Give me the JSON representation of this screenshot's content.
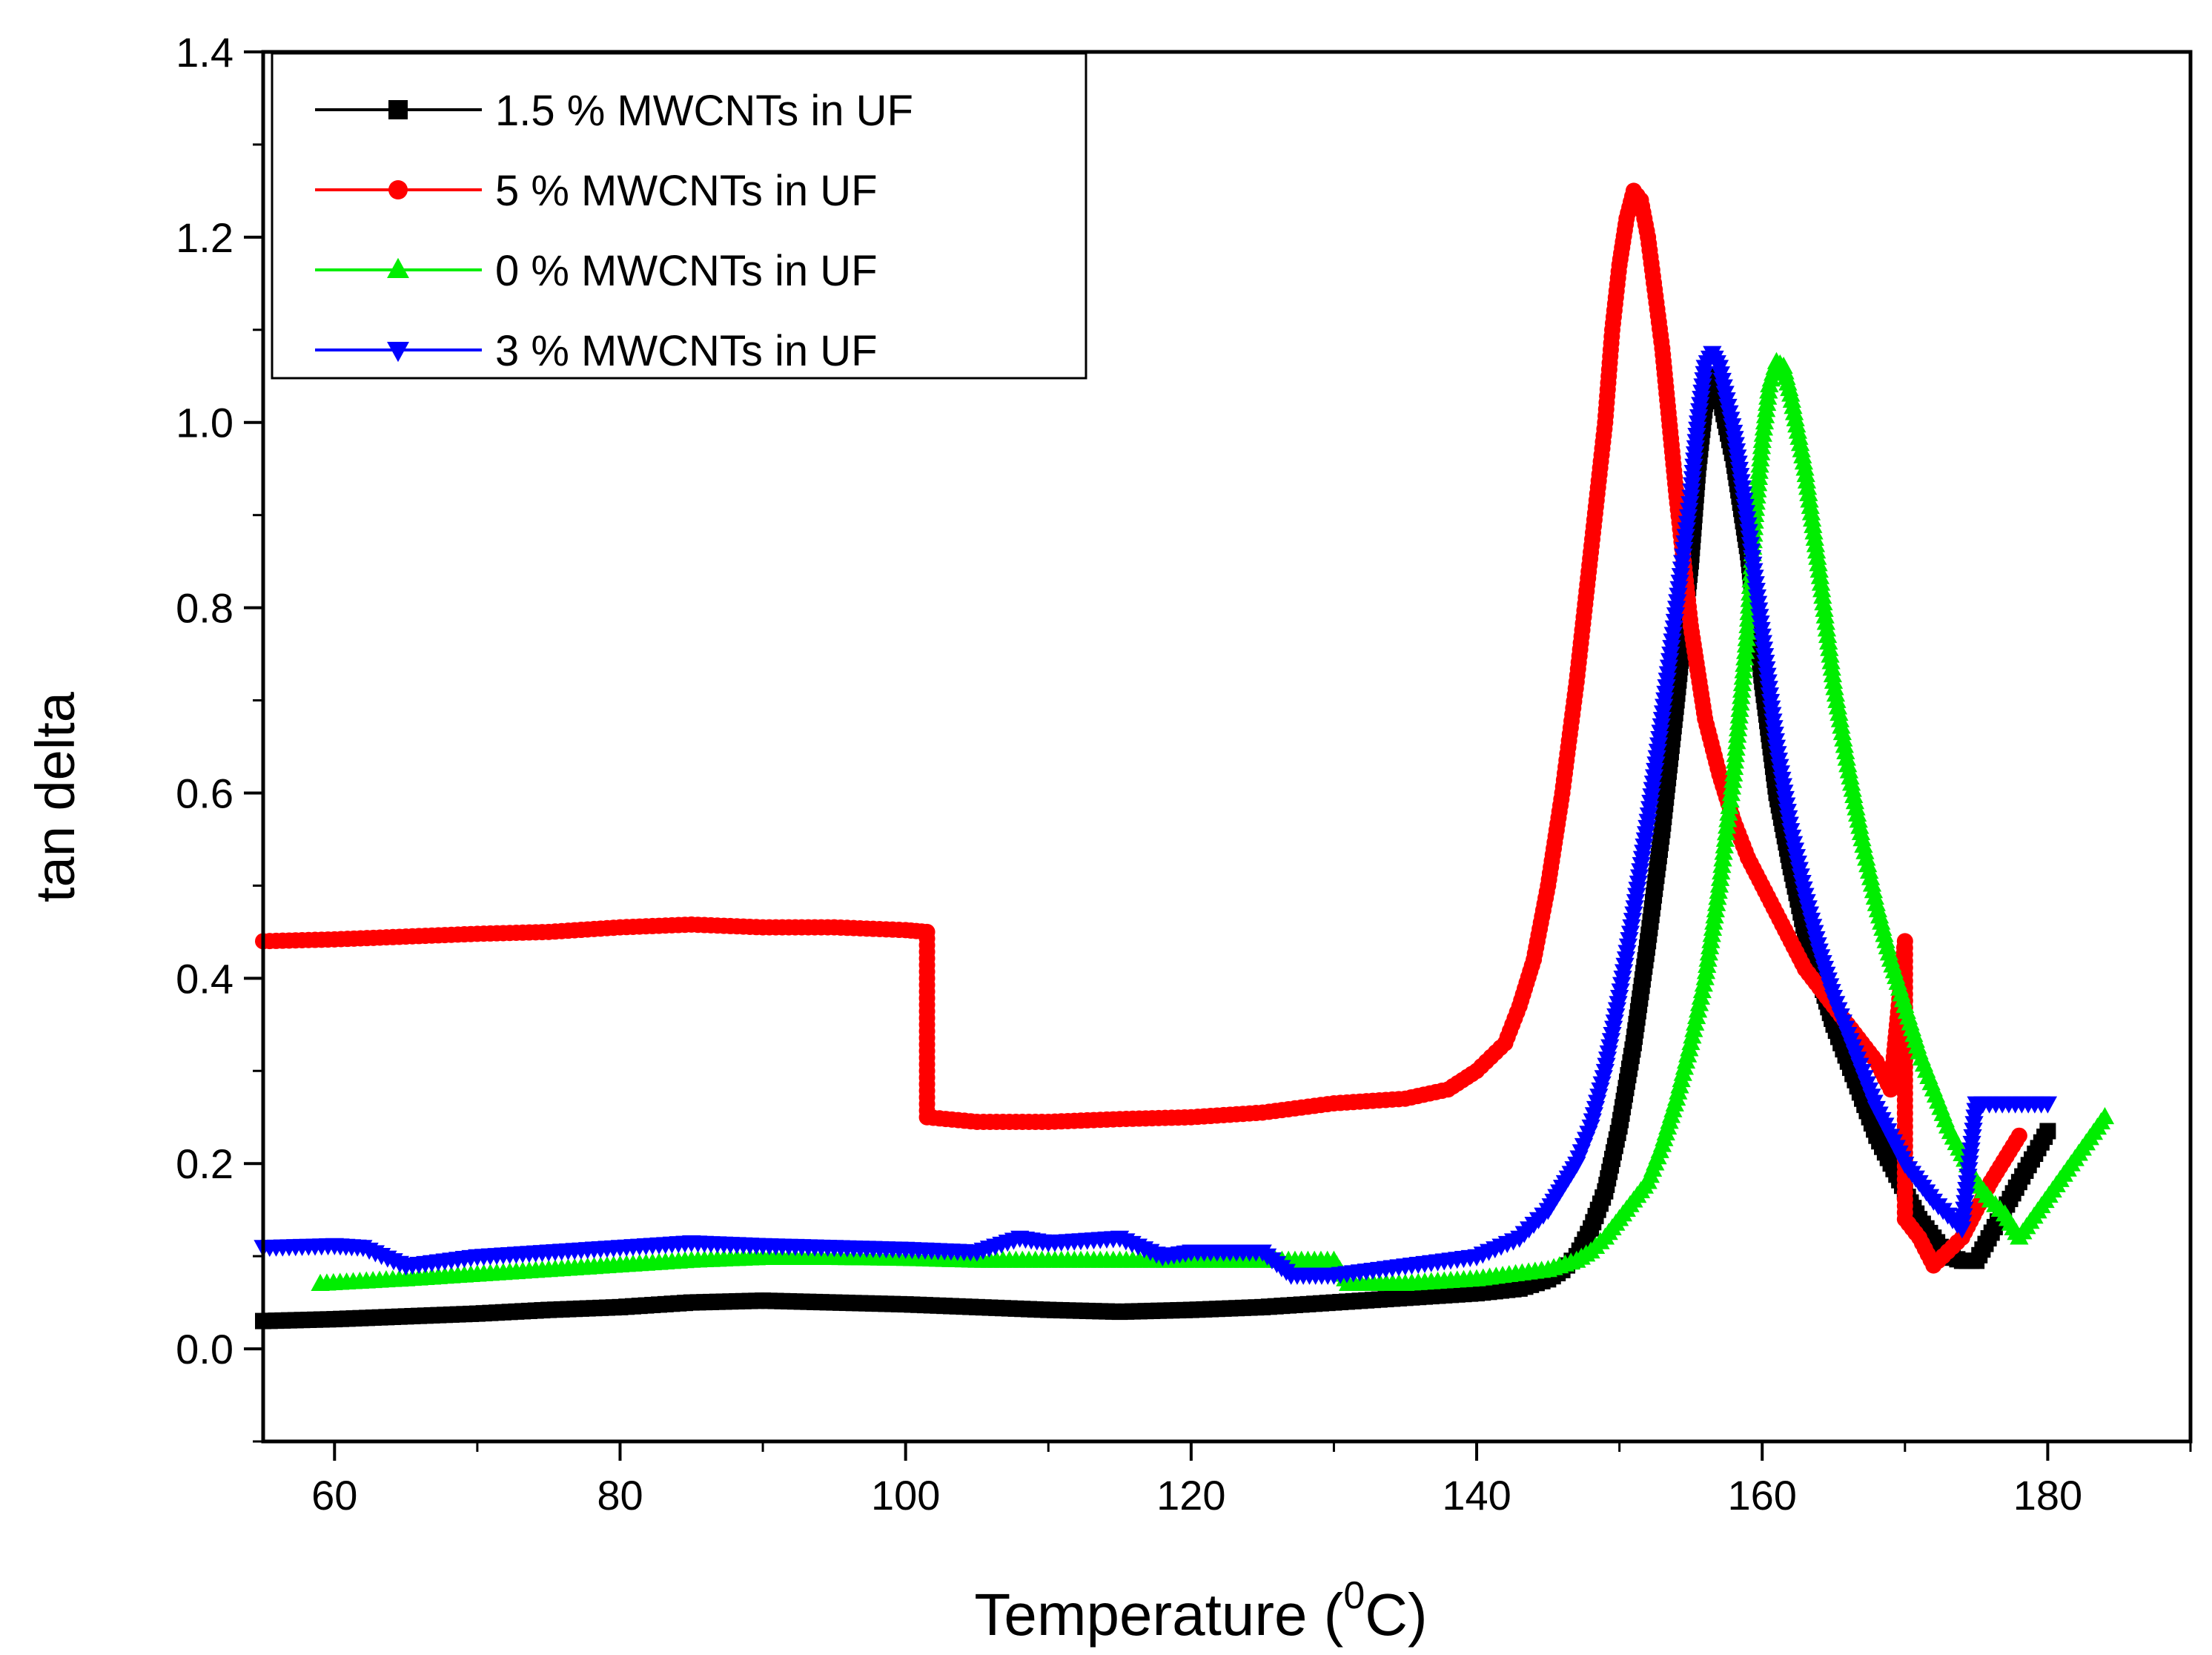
{
  "chart_data": {
    "type": "line",
    "title": "",
    "xlabel": "Temperature (",
    "xlabel_sup": "0",
    "xlabel_suffix": "C)",
    "ylabel": "tan delta",
    "xlim": [
      55,
      190
    ],
    "ylim": [
      -0.1,
      1.4
    ],
    "xticks": [
      60,
      80,
      100,
      120,
      140,
      160,
      180
    ],
    "yticks": [
      0.0,
      0.2,
      0.4,
      0.6,
      0.8,
      1.0,
      1.2,
      1.4
    ],
    "xtick_labels": [
      "60",
      "80",
      "100",
      "120",
      "140",
      "160",
      "180"
    ],
    "ytick_labels": [
      "0.0",
      "0.2",
      "0.4",
      "0.6",
      "0.8",
      "1.0",
      "1.2",
      "1.4"
    ],
    "grid": false,
    "legend_position": "top-left",
    "series": [
      {
        "name": "1.5 % MWCNTs in UF",
        "color": "#000000",
        "marker": "square",
        "points": [
          [
            55,
            0.03
          ],
          [
            60,
            0.032
          ],
          [
            65,
            0.035
          ],
          [
            70,
            0.038
          ],
          [
            75,
            0.042
          ],
          [
            80,
            0.045
          ],
          [
            85,
            0.05
          ],
          [
            90,
            0.052
          ],
          [
            95,
            0.05
          ],
          [
            100,
            0.048
          ],
          [
            105,
            0.045
          ],
          [
            110,
            0.042
          ],
          [
            115,
            0.04
          ],
          [
            120,
            0.042
          ],
          [
            125,
            0.045
          ],
          [
            130,
            0.05
          ],
          [
            135,
            0.055
          ],
          [
            140,
            0.06
          ],
          [
            143,
            0.065
          ],
          [
            145,
            0.075
          ],
          [
            146,
            0.085
          ],
          [
            147,
            0.1
          ],
          [
            148,
            0.13
          ],
          [
            149,
            0.17
          ],
          [
            150,
            0.24
          ],
          [
            151,
            0.33
          ],
          [
            152,
            0.44
          ],
          [
            153,
            0.56
          ],
          [
            154,
            0.7
          ],
          [
            155,
            0.85
          ],
          [
            155.5,
            0.95
          ],
          [
            156,
            1.02
          ],
          [
            156.5,
            1.05
          ],
          [
            157,
            1.03
          ],
          [
            158,
            0.96
          ],
          [
            159,
            0.86
          ],
          [
            160,
            0.72
          ],
          [
            161,
            0.6
          ],
          [
            162,
            0.52
          ],
          [
            163,
            0.45
          ],
          [
            164,
            0.4
          ],
          [
            165,
            0.35
          ],
          [
            166,
            0.31
          ],
          [
            167,
            0.27
          ],
          [
            168,
            0.23
          ],
          [
            169,
            0.2
          ],
          [
            170,
            0.17
          ],
          [
            171,
            0.14
          ],
          [
            172,
            0.12
          ],
          [
            173,
            0.1
          ],
          [
            174,
            0.095
          ],
          [
            175,
            0.095
          ],
          [
            178,
            0.18
          ],
          [
            180,
            0.235
          ]
        ]
      },
      {
        "name": "5 % MWCNTs in UF",
        "color": "#ff0000",
        "marker": "circle",
        "points": [
          [
            55,
            0.44
          ],
          [
            60,
            0.442
          ],
          [
            65,
            0.445
          ],
          [
            70,
            0.448
          ],
          [
            75,
            0.45
          ],
          [
            80,
            0.455
          ],
          [
            85,
            0.458
          ],
          [
            90,
            0.455
          ],
          [
            95,
            0.455
          ],
          [
            100,
            0.452
          ],
          [
            101.5,
            0.45
          ],
          [
            101.5,
            0.25
          ],
          [
            105,
            0.245
          ],
          [
            110,
            0.245
          ],
          [
            115,
            0.248
          ],
          [
            120,
            0.25
          ],
          [
            125,
            0.255
          ],
          [
            130,
            0.265
          ],
          [
            135,
            0.27
          ],
          [
            138,
            0.28
          ],
          [
            140,
            0.3
          ],
          [
            142,
            0.33
          ],
          [
            143,
            0.37
          ],
          [
            144,
            0.42
          ],
          [
            145,
            0.5
          ],
          [
            146,
            0.6
          ],
          [
            147,
            0.72
          ],
          [
            148,
            0.86
          ],
          [
            149,
            1.0
          ],
          [
            149.5,
            1.1
          ],
          [
            150,
            1.17
          ],
          [
            150.5,
            1.22
          ],
          [
            151,
            1.25
          ],
          [
            151.5,
            1.24
          ],
          [
            152,
            1.2
          ],
          [
            153,
            1.08
          ],
          [
            154,
            0.92
          ],
          [
            155,
            0.78
          ],
          [
            156,
            0.68
          ],
          [
            157,
            0.62
          ],
          [
            158,
            0.57
          ],
          [
            159,
            0.53
          ],
          [
            160,
            0.5
          ],
          [
            161,
            0.47
          ],
          [
            162,
            0.44
          ],
          [
            163,
            0.41
          ],
          [
            164,
            0.39
          ],
          [
            165,
            0.37
          ],
          [
            166,
            0.35
          ],
          [
            167,
            0.33
          ],
          [
            168,
            0.31
          ],
          [
            169,
            0.28
          ],
          [
            170,
            0.44
          ],
          [
            170,
            0.14
          ],
          [
            171,
            0.12
          ],
          [
            172,
            0.09
          ],
          [
            174,
            0.12
          ],
          [
            176,
            0.18
          ],
          [
            178,
            0.23
          ]
        ]
      },
      {
        "name": "0 % MWCNTs in UF",
        "color": "#00ee00",
        "marker": "triangle-up",
        "points": [
          [
            59,
            0.07
          ],
          [
            65,
            0.075
          ],
          [
            70,
            0.08
          ],
          [
            75,
            0.085
          ],
          [
            80,
            0.09
          ],
          [
            85,
            0.095
          ],
          [
            90,
            0.098
          ],
          [
            95,
            0.098
          ],
          [
            100,
            0.097
          ],
          [
            105,
            0.095
          ],
          [
            110,
            0.095
          ],
          [
            115,
            0.095
          ],
          [
            120,
            0.095
          ],
          [
            125,
            0.095
          ],
          [
            130,
            0.095
          ],
          [
            131,
            0.07
          ],
          [
            135,
            0.07
          ],
          [
            140,
            0.075
          ],
          [
            145,
            0.085
          ],
          [
            147,
            0.095
          ],
          [
            148,
            0.105
          ],
          [
            149,
            0.12
          ],
          [
            150,
            0.14
          ],
          [
            151,
            0.16
          ],
          [
            152,
            0.18
          ],
          [
            153,
            0.22
          ],
          [
            154,
            0.27
          ],
          [
            155,
            0.33
          ],
          [
            156,
            0.4
          ],
          [
            157,
            0.5
          ],
          [
            158,
            0.62
          ],
          [
            159,
            0.78
          ],
          [
            159.5,
            0.9
          ],
          [
            160,
            0.98
          ],
          [
            160.5,
            1.04
          ],
          [
            161,
            1.065
          ],
          [
            161.5,
            1.06
          ],
          [
            162,
            1.03
          ],
          [
            163,
            0.95
          ],
          [
            164,
            0.84
          ],
          [
            165,
            0.72
          ],
          [
            166,
            0.63
          ],
          [
            167,
            0.55
          ],
          [
            168,
            0.48
          ],
          [
            169,
            0.42
          ],
          [
            170,
            0.37
          ],
          [
            171,
            0.32
          ],
          [
            172,
            0.28
          ],
          [
            173,
            0.24
          ],
          [
            174,
            0.21
          ],
          [
            175,
            0.18
          ],
          [
            176,
            0.16
          ],
          [
            177,
            0.145
          ],
          [
            178,
            0.12
          ],
          [
            184,
            0.25
          ]
        ]
      },
      {
        "name": "3 % MWCNTs in UF",
        "color": "#0000ff",
        "marker": "triangle-down",
        "points": [
          [
            55,
            0.11
          ],
          [
            60,
            0.112
          ],
          [
            62,
            0.11
          ],
          [
            65,
            0.09
          ],
          [
            70,
            0.1
          ],
          [
            75,
            0.105
          ],
          [
            80,
            0.11
          ],
          [
            85,
            0.115
          ],
          [
            90,
            0.112
          ],
          [
            95,
            0.11
          ],
          [
            100,
            0.108
          ],
          [
            105,
            0.105
          ],
          [
            108,
            0.12
          ],
          [
            110,
            0.115
          ],
          [
            115,
            0.12
          ],
          [
            118,
            0.1
          ],
          [
            120,
            0.105
          ],
          [
            125,
            0.105
          ],
          [
            127,
            0.08
          ],
          [
            130,
            0.08
          ],
          [
            135,
            0.09
          ],
          [
            140,
            0.1
          ],
          [
            143,
            0.12
          ],
          [
            145,
            0.15
          ],
          [
            146,
            0.175
          ],
          [
            147,
            0.2
          ],
          [
            148,
            0.24
          ],
          [
            149,
            0.3
          ],
          [
            150,
            0.38
          ],
          [
            151,
            0.47
          ],
          [
            152,
            0.57
          ],
          [
            153,
            0.68
          ],
          [
            154,
            0.8
          ],
          [
            155,
            0.92
          ],
          [
            155.5,
            1.0
          ],
          [
            156,
            1.06
          ],
          [
            156.5,
            1.075
          ],
          [
            157,
            1.06
          ],
          [
            158,
            0.99
          ],
          [
            159,
            0.89
          ],
          [
            160,
            0.77
          ],
          [
            161,
            0.65
          ],
          [
            162,
            0.56
          ],
          [
            163,
            0.49
          ],
          [
            164,
            0.43
          ],
          [
            165,
            0.38
          ],
          [
            166,
            0.34
          ],
          [
            167,
            0.3
          ],
          [
            168,
            0.26
          ],
          [
            169,
            0.23
          ],
          [
            170,
            0.2
          ],
          [
            171,
            0.18
          ],
          [
            172,
            0.16
          ],
          [
            173,
            0.145
          ],
          [
            174,
            0.13
          ],
          [
            175,
            0.265
          ],
          [
            180,
            0.265
          ]
        ]
      }
    ]
  }
}
